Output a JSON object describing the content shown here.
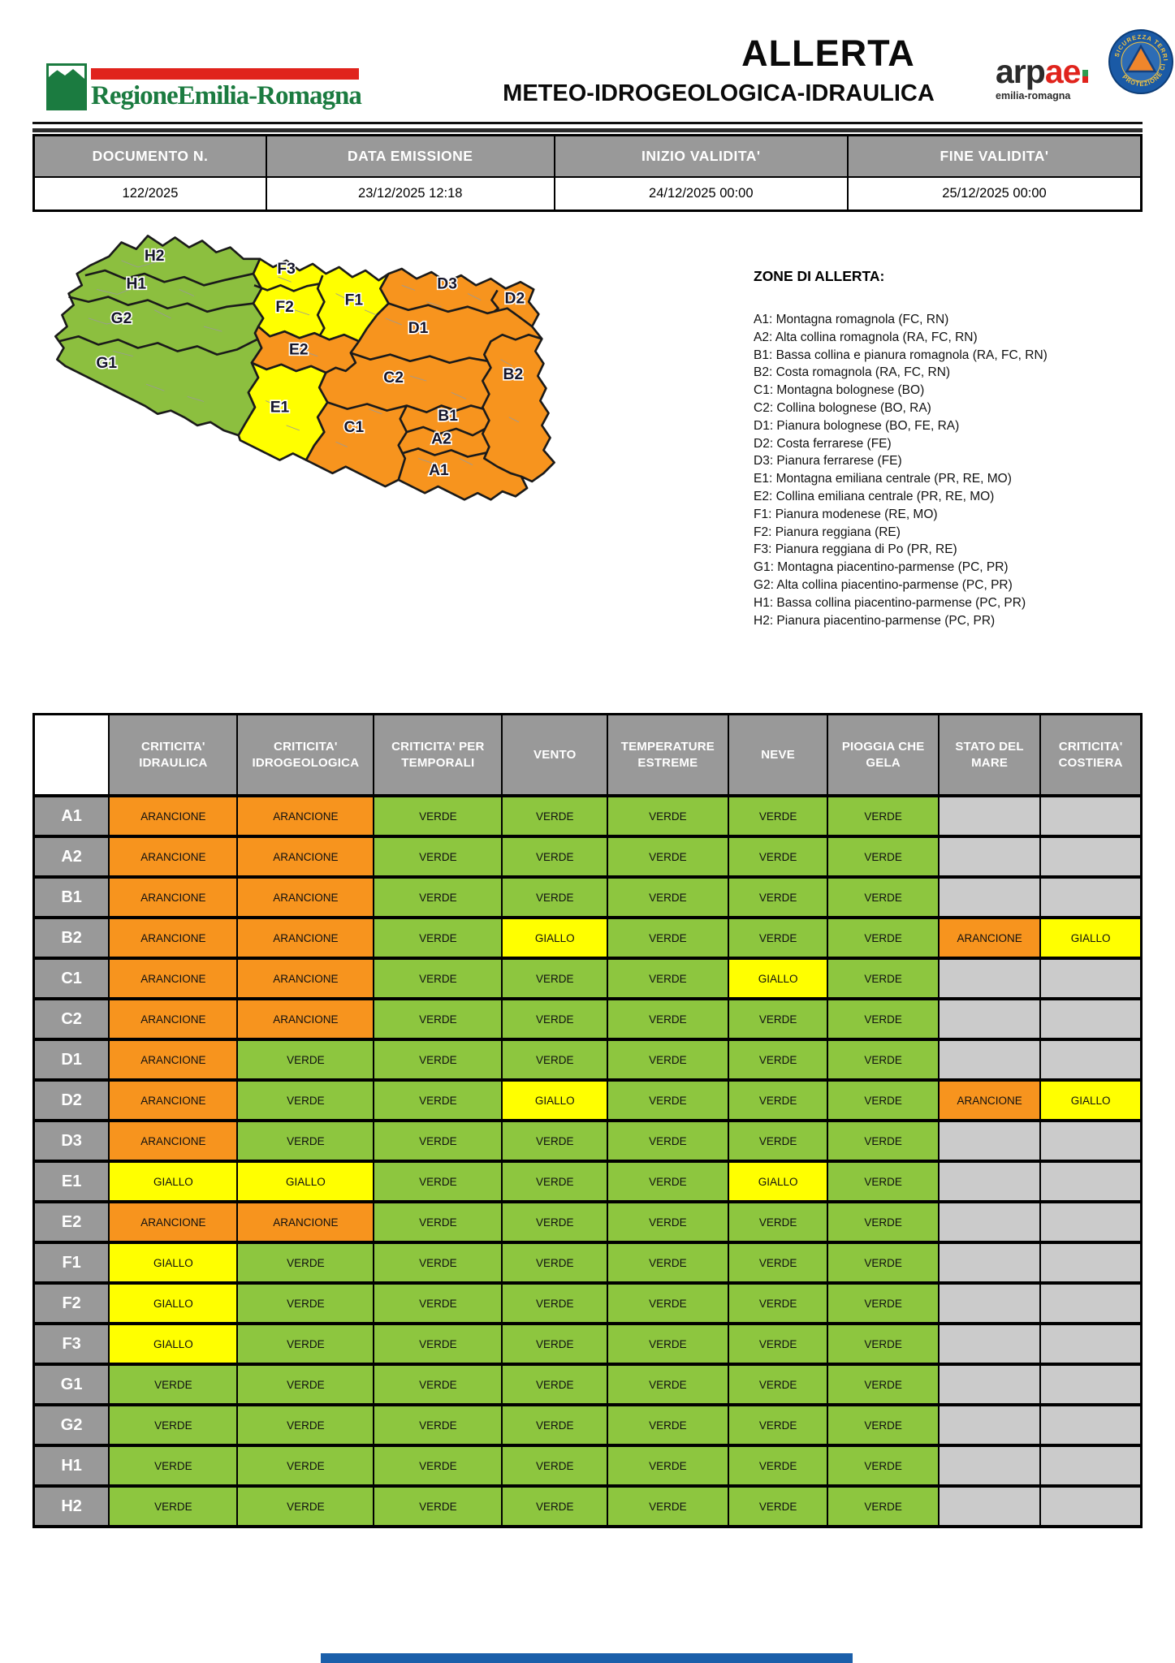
{
  "header": {
    "logo": {
      "region_name": "RegioneEmilia-Romagna"
    },
    "title": "ALLERTA",
    "subtitle": "METEO-IDROGEOLOGICA-IDRAULICA",
    "arpae": {
      "name_dark": "arp",
      "name_red": "ae",
      "sub": "emilia-romagna"
    },
    "protezione": {
      "top": "SICUREZZA TERRITORIALE",
      "bottom": "PROTEZIONE CIVILE"
    }
  },
  "doc_info": {
    "headers": [
      "DOCUMENTO N.",
      "DATA EMISSIONE",
      "INIZIO VALIDITA'",
      "FINE VALIDITA'"
    ],
    "values": [
      "122/2025",
      "23/12/2025 12:18",
      "24/12/2025 00:00",
      "25/12/2025 00:00"
    ]
  },
  "zones_legend": {
    "title": "ZONE DI ALLERTA:",
    "items": [
      "A1: Montagna romagnola (FC, RN)",
      "A2: Alta collina romagnola (RA, FC, RN)",
      "B1: Bassa collina e pianura romagnola (RA, FC, RN)",
      "B2: Costa romagnola (RA, FC, RN)",
      "C1: Montagna bolognese (BO)",
      "C2: Collina bolognese (BO, RA)",
      "D1: Pianura bolognese (BO, FE, RA)",
      "D2: Costa ferrarese (FE)",
      "D3: Pianura ferrarese (FE)",
      "E1: Montagna emiliana centrale (PR, RE, MO)",
      "E2: Collina emiliana centrale (PR, RE, MO)",
      "F1: Pianura modenese (RE, MO)",
      "F2: Pianura reggiana (RE)",
      "F3: Pianura reggiana di Po (PR, RE)",
      "G1: Montagna piacentino-parmense (PC, PR)",
      "G2: Alta collina piacentino-parmense (PC, PR)",
      "H1: Bassa collina piacentino-parmense (PC, PR)",
      "H2: Pianura piacentino-parmense (PC, PR)"
    ]
  },
  "map": {
    "zone_labels": [
      "H2",
      "H1",
      "G2",
      "G1",
      "F3",
      "F2",
      "F1",
      "E2",
      "E1",
      "D3",
      "D2",
      "D1",
      "C2",
      "C1",
      "B2",
      "B1",
      "A2",
      "A1"
    ],
    "zone_fill": {
      "green_zones": [
        "G1",
        "G2",
        "H1",
        "H2"
      ],
      "yellow_zones": [
        "F1",
        "F2",
        "F3",
        "E1"
      ],
      "orange_zones": [
        "E2",
        "D1",
        "D2",
        "D3",
        "C1",
        "C2",
        "B1",
        "B2",
        "A1",
        "A2"
      ]
    }
  },
  "colors": {
    "verde": "#8DC63F",
    "giallo": "#FFFF00",
    "arancione": "#F7941E",
    "empty_cell": "#CBCBCB",
    "header_gray": "#999999",
    "logo_green": "#1b7b40",
    "logo_red": "#e0231c",
    "footer_blue": "#1b5faa"
  },
  "alert_table": {
    "columns": [
      "CRITICITA' IDRAULICA",
      "CRITICITA' IDROGEOLOGICA",
      "CRITICITA' PER TEMPORALI",
      "VENTO",
      "TEMPERATURE ESTREME",
      "NEVE",
      "PIOGGIA CHE GELA",
      "STATO DEL MARE",
      "CRITICITA' COSTIERA"
    ],
    "rows": [
      {
        "zone": "A1",
        "cells": [
          "ARANCIONE",
          "ARANCIONE",
          "VERDE",
          "VERDE",
          "VERDE",
          "VERDE",
          "VERDE",
          "",
          ""
        ]
      },
      {
        "zone": "A2",
        "cells": [
          "ARANCIONE",
          "ARANCIONE",
          "VERDE",
          "VERDE",
          "VERDE",
          "VERDE",
          "VERDE",
          "",
          ""
        ]
      },
      {
        "zone": "B1",
        "cells": [
          "ARANCIONE",
          "ARANCIONE",
          "VERDE",
          "VERDE",
          "VERDE",
          "VERDE",
          "VERDE",
          "",
          ""
        ]
      },
      {
        "zone": "B2",
        "cells": [
          "ARANCIONE",
          "ARANCIONE",
          "VERDE",
          "GIALLO",
          "VERDE",
          "VERDE",
          "VERDE",
          "ARANCIONE",
          "GIALLO"
        ]
      },
      {
        "zone": "C1",
        "cells": [
          "ARANCIONE",
          "ARANCIONE",
          "VERDE",
          "VERDE",
          "VERDE",
          "GIALLO",
          "VERDE",
          "",
          ""
        ]
      },
      {
        "zone": "C2",
        "cells": [
          "ARANCIONE",
          "ARANCIONE",
          "VERDE",
          "VERDE",
          "VERDE",
          "VERDE",
          "VERDE",
          "",
          ""
        ]
      },
      {
        "zone": "D1",
        "cells": [
          "ARANCIONE",
          "VERDE",
          "VERDE",
          "VERDE",
          "VERDE",
          "VERDE",
          "VERDE",
          "",
          ""
        ]
      },
      {
        "zone": "D2",
        "cells": [
          "ARANCIONE",
          "VERDE",
          "VERDE",
          "GIALLO",
          "VERDE",
          "VERDE",
          "VERDE",
          "ARANCIONE",
          "GIALLO"
        ]
      },
      {
        "zone": "D3",
        "cells": [
          "ARANCIONE",
          "VERDE",
          "VERDE",
          "VERDE",
          "VERDE",
          "VERDE",
          "VERDE",
          "",
          ""
        ]
      },
      {
        "zone": "E1",
        "cells": [
          "GIALLO",
          "GIALLO",
          "VERDE",
          "VERDE",
          "VERDE",
          "GIALLO",
          "VERDE",
          "",
          ""
        ]
      },
      {
        "zone": "E2",
        "cells": [
          "ARANCIONE",
          "ARANCIONE",
          "VERDE",
          "VERDE",
          "VERDE",
          "VERDE",
          "VERDE",
          "",
          ""
        ]
      },
      {
        "zone": "F1",
        "cells": [
          "GIALLO",
          "VERDE",
          "VERDE",
          "VERDE",
          "VERDE",
          "VERDE",
          "VERDE",
          "",
          ""
        ]
      },
      {
        "zone": "F2",
        "cells": [
          "GIALLO",
          "VERDE",
          "VERDE",
          "VERDE",
          "VERDE",
          "VERDE",
          "VERDE",
          "",
          ""
        ]
      },
      {
        "zone": "F3",
        "cells": [
          "GIALLO",
          "VERDE",
          "VERDE",
          "VERDE",
          "VERDE",
          "VERDE",
          "VERDE",
          "",
          ""
        ]
      },
      {
        "zone": "G1",
        "cells": [
          "VERDE",
          "VERDE",
          "VERDE",
          "VERDE",
          "VERDE",
          "VERDE",
          "VERDE",
          "",
          ""
        ]
      },
      {
        "zone": "G2",
        "cells": [
          "VERDE",
          "VERDE",
          "VERDE",
          "VERDE",
          "VERDE",
          "VERDE",
          "VERDE",
          "",
          ""
        ]
      },
      {
        "zone": "H1",
        "cells": [
          "VERDE",
          "VERDE",
          "VERDE",
          "VERDE",
          "VERDE",
          "VERDE",
          "VERDE",
          "",
          ""
        ]
      },
      {
        "zone": "H2",
        "cells": [
          "VERDE",
          "VERDE",
          "VERDE",
          "VERDE",
          "VERDE",
          "VERDE",
          "VERDE",
          "",
          ""
        ]
      }
    ]
  }
}
